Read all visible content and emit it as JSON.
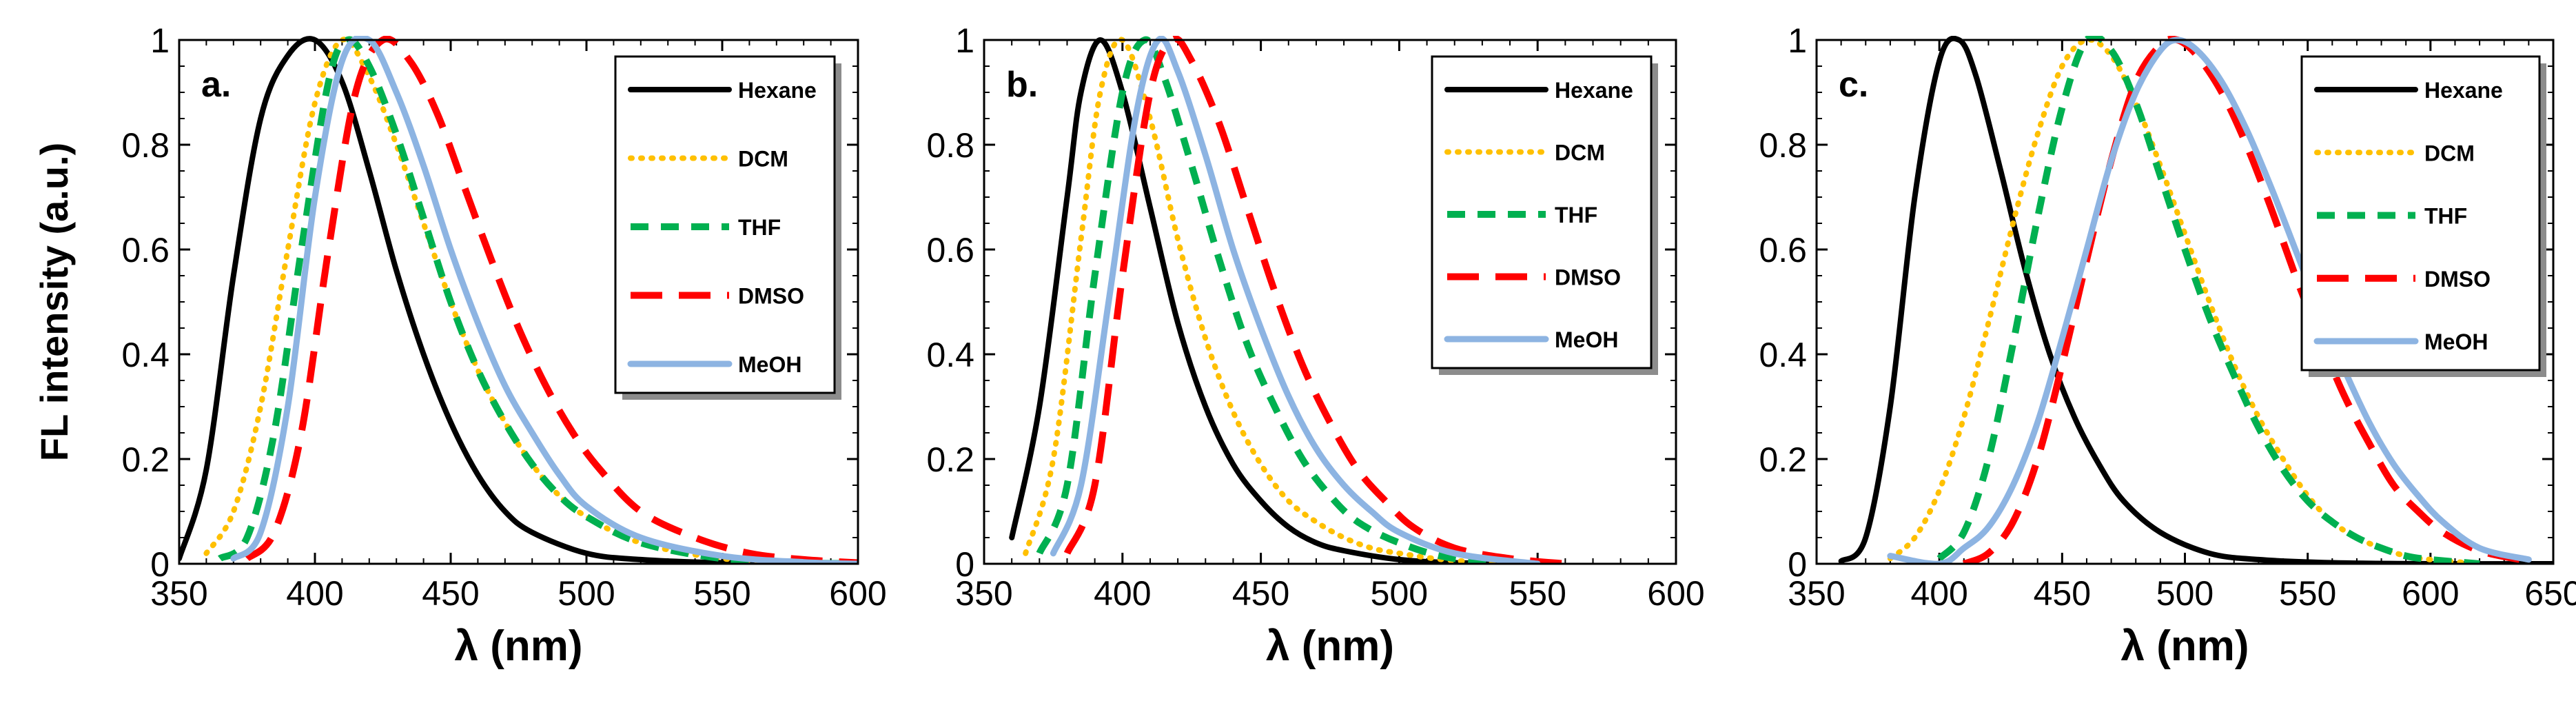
{
  "figure": {
    "legend_colors": {
      "Hexane": "#000000",
      "DCM": "#FFC000",
      "THF": "#00B050",
      "DMSO": "#FF0000",
      "MeOH": "#8DB4E2"
    }
  },
  "chart_data": [
    {
      "type": "line",
      "panel_label": "a.",
      "ylabel": "FL intensity (a.u.)",
      "xlabel": "λ (nm)",
      "xlim": [
        350,
        600
      ],
      "ylim": [
        0,
        1
      ],
      "x_ticks": [
        "350",
        "400",
        "450",
        "500",
        "550",
        "600"
      ],
      "y_ticks": [
        "0",
        "0.2",
        "0.4",
        "0.6",
        "0.8",
        "1"
      ],
      "legend": [
        "Hexane",
        "DCM",
        "THF",
        "DMSO",
        "MeOH"
      ],
      "series": [
        {
          "name": "Hexane",
          "x": [
            350,
            360,
            370,
            380,
            390,
            400,
            410,
            420,
            430,
            440,
            450,
            460,
            470,
            480,
            500,
            520,
            550,
            600
          ],
          "y": [
            0.01,
            0.18,
            0.55,
            0.85,
            0.97,
            1.0,
            0.92,
            0.75,
            0.56,
            0.4,
            0.27,
            0.17,
            0.1,
            0.06,
            0.02,
            0.008,
            0.002,
            0.0
          ]
        },
        {
          "name": "DCM",
          "x": [
            360,
            370,
            380,
            390,
            400,
            410,
            420,
            430,
            440,
            450,
            460,
            470,
            480,
            490,
            500,
            520,
            550,
            580,
            600
          ],
          "y": [
            0.02,
            0.1,
            0.3,
            0.6,
            0.88,
            1.0,
            0.93,
            0.8,
            0.65,
            0.5,
            0.37,
            0.27,
            0.19,
            0.13,
            0.09,
            0.04,
            0.01,
            0.002,
            0.0
          ]
        },
        {
          "name": "THF",
          "x": [
            365,
            375,
            385,
            395,
            405,
            412,
            420,
            430,
            440,
            450,
            460,
            470,
            480,
            490,
            500,
            520,
            550,
            580,
            600
          ],
          "y": [
            0.01,
            0.05,
            0.25,
            0.6,
            0.92,
            1.0,
            0.95,
            0.82,
            0.66,
            0.5,
            0.37,
            0.27,
            0.19,
            0.13,
            0.09,
            0.04,
            0.01,
            0.002,
            0.0
          ]
        },
        {
          "name": "DMSO",
          "x": [
            375,
            385,
            395,
            405,
            415,
            425,
            435,
            445,
            455,
            465,
            475,
            485,
            495,
            505,
            520,
            540,
            560,
            580,
            600
          ],
          "y": [
            0.01,
            0.06,
            0.25,
            0.6,
            0.9,
            1.0,
            0.96,
            0.86,
            0.72,
            0.58,
            0.45,
            0.34,
            0.25,
            0.18,
            0.1,
            0.05,
            0.02,
            0.008,
            0.002
          ]
        },
        {
          "name": "MeOH",
          "x": [
            370,
            380,
            390,
            400,
            410,
            420,
            430,
            440,
            450,
            460,
            470,
            480,
            490,
            500,
            520,
            550,
            580,
            600
          ],
          "y": [
            0.01,
            0.06,
            0.3,
            0.7,
            0.96,
            1.0,
            0.9,
            0.76,
            0.6,
            0.46,
            0.34,
            0.25,
            0.17,
            0.11,
            0.05,
            0.015,
            0.003,
            0.0
          ]
        }
      ]
    },
    {
      "type": "line",
      "panel_label": "b.",
      "xlabel": "λ (nm)",
      "xlim": [
        350,
        600
      ],
      "ylim": [
        0,
        1
      ],
      "x_ticks": [
        "350",
        "400",
        "450",
        "500",
        "550",
        "600"
      ],
      "y_ticks": [
        "0",
        "0.2",
        "0.4",
        "0.6",
        "0.8",
        "1"
      ],
      "legend": [
        "Hexane",
        "DCM",
        "THF",
        "DMSO",
        "MeOH"
      ],
      "series": [
        {
          "name": "Hexane",
          "x": [
            360,
            370,
            380,
            385,
            392,
            400,
            410,
            420,
            430,
            440,
            450,
            460,
            470,
            480,
            500,
            520,
            550
          ],
          "y": [
            0.05,
            0.3,
            0.7,
            0.9,
            1.0,
            0.9,
            0.68,
            0.46,
            0.3,
            0.19,
            0.12,
            0.07,
            0.04,
            0.025,
            0.008,
            0.002,
            0.0
          ]
        },
        {
          "name": "DCM",
          "x": [
            365,
            375,
            385,
            392,
            400,
            410,
            420,
            430,
            440,
            450,
            460,
            470,
            480,
            490,
            500,
            520,
            550
          ],
          "y": [
            0.02,
            0.2,
            0.62,
            0.9,
            1.0,
            0.85,
            0.62,
            0.43,
            0.29,
            0.19,
            0.12,
            0.08,
            0.05,
            0.03,
            0.02,
            0.006,
            0.0
          ]
        },
        {
          "name": "THF",
          "x": [
            370,
            380,
            390,
            400,
            408,
            415,
            425,
            435,
            445,
            455,
            465,
            475,
            485,
            500,
            520,
            550
          ],
          "y": [
            0.02,
            0.15,
            0.55,
            0.9,
            1.0,
            0.93,
            0.76,
            0.58,
            0.42,
            0.3,
            0.2,
            0.13,
            0.08,
            0.04,
            0.01,
            0.0
          ]
        },
        {
          "name": "DMSO",
          "x": [
            380,
            390,
            400,
            410,
            418,
            425,
            435,
            445,
            455,
            465,
            475,
            485,
            495,
            505,
            520,
            540,
            560
          ],
          "y": [
            0.02,
            0.15,
            0.55,
            0.9,
            1.0,
            0.96,
            0.84,
            0.68,
            0.52,
            0.38,
            0.27,
            0.18,
            0.12,
            0.07,
            0.03,
            0.01,
            0.0
          ]
        },
        {
          "name": "MeOH",
          "x": [
            375,
            385,
            395,
            405,
            413,
            420,
            430,
            440,
            450,
            460,
            470,
            480,
            490,
            500,
            520,
            550
          ],
          "y": [
            0.02,
            0.15,
            0.5,
            0.86,
            1.0,
            0.94,
            0.78,
            0.6,
            0.45,
            0.32,
            0.22,
            0.15,
            0.1,
            0.06,
            0.02,
            0.0
          ]
        }
      ]
    },
    {
      "type": "line",
      "panel_label": "c.",
      "xlabel": "λ (nm)",
      "xlim": [
        350,
        650
      ],
      "ylim": [
        0,
        1
      ],
      "x_ticks": [
        "350",
        "400",
        "450",
        "500",
        "550",
        "600",
        "650"
      ],
      "y_ticks": [
        "0",
        "0.2",
        "0.4",
        "0.6",
        "0.8",
        "1"
      ],
      "legend": [
        "Hexane",
        "DCM",
        "THF",
        "DMSO",
        "MeOH"
      ],
      "series": [
        {
          "name": "Hexane",
          "x": [
            360,
            370,
            380,
            390,
            400,
            408,
            415,
            425,
            435,
            445,
            455,
            465,
            475,
            490,
            510,
            530,
            560,
            600,
            650
          ],
          "y": [
            0.005,
            0.05,
            0.3,
            0.7,
            0.96,
            1.0,
            0.93,
            0.75,
            0.56,
            0.4,
            0.28,
            0.19,
            0.12,
            0.06,
            0.02,
            0.008,
            0.002,
            0.0,
            0.0
          ]
        },
        {
          "name": "DCM",
          "x": [
            380,
            390,
            400,
            410,
            420,
            430,
            440,
            450,
            460,
            470,
            480,
            490,
            500,
            510,
            520,
            530,
            540,
            550,
            560,
            570,
            580,
            590,
            600,
            620
          ],
          "y": [
            0.01,
            0.05,
            0.14,
            0.28,
            0.46,
            0.65,
            0.82,
            0.95,
            1.0,
            0.97,
            0.88,
            0.76,
            0.63,
            0.5,
            0.38,
            0.28,
            0.2,
            0.13,
            0.08,
            0.05,
            0.03,
            0.015,
            0.008,
            0.0
          ]
        },
        {
          "name": "THF",
          "x": [
            400,
            410,
            420,
            430,
            440,
            450,
            460,
            470,
            480,
            490,
            500,
            510,
            520,
            530,
            540,
            550,
            560,
            570,
            580,
            590,
            600,
            620
          ],
          "y": [
            0.01,
            0.06,
            0.2,
            0.42,
            0.66,
            0.87,
            1.0,
            0.98,
            0.88,
            0.74,
            0.6,
            0.47,
            0.36,
            0.26,
            0.18,
            0.12,
            0.08,
            0.05,
            0.03,
            0.015,
            0.008,
            0.0
          ]
        },
        {
          "name": "DMSO",
          "x": [
            410,
            420,
            430,
            440,
            450,
            460,
            470,
            480,
            490,
            497,
            505,
            515,
            525,
            535,
            545,
            555,
            565,
            575,
            585,
            595,
            605,
            620,
            640
          ],
          "y": [
            0.0,
            0.02,
            0.08,
            0.2,
            0.38,
            0.58,
            0.77,
            0.92,
            0.99,
            1.0,
            0.97,
            0.9,
            0.8,
            0.68,
            0.55,
            0.43,
            0.32,
            0.23,
            0.15,
            0.1,
            0.06,
            0.025,
            0.005
          ]
        },
        {
          "name": "MeOH",
          "x": [
            380,
            400,
            410,
            420,
            430,
            440,
            450,
            460,
            470,
            480,
            490,
            497,
            505,
            515,
            525,
            535,
            545,
            555,
            565,
            575,
            585,
            595,
            605,
            620,
            640
          ],
          "y": [
            0.015,
            0.0,
            0.03,
            0.07,
            0.15,
            0.27,
            0.43,
            0.6,
            0.77,
            0.9,
            0.98,
            1.0,
            0.98,
            0.92,
            0.83,
            0.72,
            0.6,
            0.48,
            0.37,
            0.27,
            0.19,
            0.13,
            0.08,
            0.03,
            0.008
          ]
        }
      ]
    }
  ]
}
